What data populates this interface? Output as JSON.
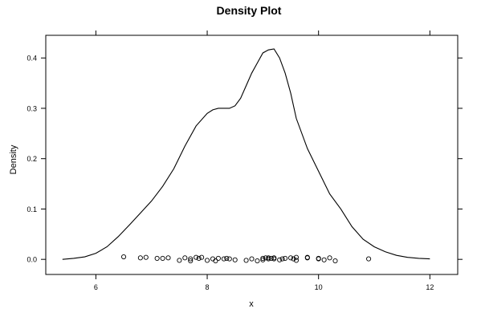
{
  "chart_data": {
    "type": "line",
    "title": "Density Plot",
    "xlabel": "x",
    "ylabel": "Density",
    "xlim": [
      5.1,
      12.5
    ],
    "ylim": [
      -0.03,
      0.445
    ],
    "xticks": [
      6,
      8,
      10,
      12
    ],
    "xtick_labels": [
      "6",
      "8",
      "10",
      "12"
    ],
    "yticks": [
      0.0,
      0.1,
      0.2,
      0.3,
      0.4
    ],
    "ytick_labels": [
      "0.0",
      "0.1",
      "0.2",
      "0.3",
      "0.4"
    ],
    "grid": false,
    "series": [
      {
        "kind": "density-curve",
        "x": [
          5.4,
          5.6,
          5.8,
          6.0,
          6.2,
          6.4,
          6.6,
          6.8,
          7.0,
          7.2,
          7.4,
          7.6,
          7.8,
          8.0,
          8.1,
          8.2,
          8.3,
          8.4,
          8.5,
          8.6,
          8.7,
          8.8,
          8.9,
          9.0,
          9.1,
          9.2,
          9.3,
          9.4,
          9.5,
          9.6,
          9.8,
          10.0,
          10.2,
          10.4,
          10.6,
          10.8,
          11.0,
          11.2,
          11.4,
          11.6,
          11.8,
          12.0
        ],
        "y": [
          0.0,
          0.002,
          0.005,
          0.012,
          0.025,
          0.045,
          0.068,
          0.092,
          0.116,
          0.145,
          0.18,
          0.225,
          0.265,
          0.29,
          0.297,
          0.3,
          0.3,
          0.3,
          0.305,
          0.32,
          0.345,
          0.37,
          0.39,
          0.41,
          0.416,
          0.418,
          0.4,
          0.37,
          0.33,
          0.28,
          0.22,
          0.175,
          0.13,
          0.1,
          0.065,
          0.04,
          0.025,
          0.015,
          0.008,
          0.004,
          0.002,
          0.001
        ]
      },
      {
        "kind": "rug-points",
        "x": [
          6.5,
          6.8,
          6.9,
          7.1,
          7.2,
          7.3,
          7.5,
          7.6,
          7.7,
          7.7,
          7.8,
          7.85,
          7.9,
          8.0,
          8.1,
          8.15,
          8.2,
          8.3,
          8.35,
          8.4,
          8.5,
          8.7,
          8.8,
          8.9,
          9.0,
          9.0,
          9.05,
          9.1,
          9.1,
          9.15,
          9.2,
          9.2,
          9.3,
          9.35,
          9.4,
          9.5,
          9.55,
          9.6,
          9.6,
          9.8,
          9.8,
          10.0,
          10.0,
          10.1,
          10.2,
          10.3,
          10.9
        ],
        "y": [
          0.005,
          0.003,
          0.004,
          0.002,
          0.002,
          0.003,
          -0.002,
          0.003,
          0.001,
          -0.003,
          0.004,
          0.002,
          0.004,
          -0.002,
          0.001,
          -0.003,
          0.002,
          0.001,
          0.002,
          0.001,
          -0.001,
          -0.002,
          0.001,
          -0.003,
          0.002,
          -0.001,
          0.003,
          0.001,
          0.003,
          0.002,
          0.001,
          0.003,
          -0.001,
          0.001,
          0.002,
          0.003,
          0.001,
          0.004,
          -0.002,
          0.004,
          0.003,
          0.002,
          0.001,
          -0.001,
          0.003,
          -0.003,
          0.001
        ]
      }
    ]
  }
}
